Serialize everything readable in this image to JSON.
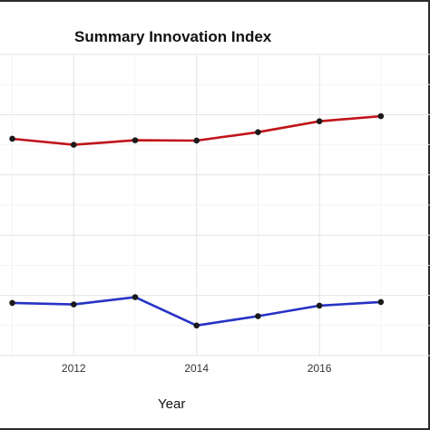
{
  "chart_data": {
    "type": "line",
    "title": "Summary Innovation Index",
    "xlabel": "Year",
    "ylabel": "",
    "x": [
      2011,
      2012,
      2013,
      2014,
      2015,
      2016,
      2017
    ],
    "x_ticks": [
      "2012",
      "2014",
      "2016"
    ],
    "xlim": [
      2010.8,
      2017.8
    ],
    "ylim": [
      0,
      1
    ],
    "grid": true,
    "series": [
      {
        "color": "#c0141a",
        "values": [
          0.72,
          0.7,
          0.715,
          0.714,
          0.742,
          0.778,
          0.795
        ]
      },
      {
        "color": "#2633c4",
        "values": [
          0.175,
          0.17,
          0.194,
          0.1,
          0.131,
          0.166,
          0.178
        ]
      }
    ]
  }
}
